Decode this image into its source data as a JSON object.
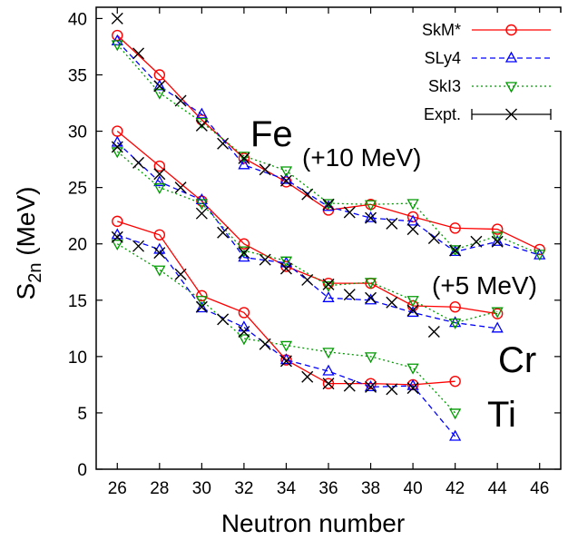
{
  "chart_data": {
    "type": "line",
    "xlabel": "Neutron number",
    "ylabel_main": "S",
    "ylabel_sub": "2n",
    "ylabel_unit": " (MeV)",
    "xlim": [
      25,
      47
    ],
    "ylim": [
      0,
      41
    ],
    "xticks": [
      26,
      28,
      30,
      32,
      34,
      36,
      38,
      40,
      42,
      44,
      46
    ],
    "yticks": [
      0,
      5,
      10,
      15,
      20,
      25,
      30,
      35,
      40
    ],
    "grid": false,
    "legend_position": "top-right",
    "legend": [
      {
        "key": "skm",
        "label": "SkM*"
      },
      {
        "key": "sly4",
        "label": "SLy4"
      },
      {
        "key": "ski3",
        "label": "SkI3"
      },
      {
        "key": "expt",
        "label": "Expt."
      }
    ],
    "styles": {
      "skm": {
        "color": "#ff0000",
        "marker": "circle",
        "dash": ""
      },
      "sly4": {
        "color": "#0000ff",
        "marker": "triangle-up",
        "dash": "6,4"
      },
      "ski3": {
        "color": "#009900",
        "marker": "triangle-down",
        "dash": "2,3"
      },
      "expt": {
        "color": "#000000",
        "marker": "cross",
        "dash": ""
      }
    },
    "annotations": {
      "fe": "Fe",
      "fe_shift": "(+10 MeV)",
      "cr_shift": "(+5 MeV)",
      "cr": "Cr",
      "ti": "Ti"
    },
    "series": [
      {
        "element": "Fe",
        "model": "skm",
        "x": [
          26,
          28,
          30,
          32,
          34,
          36,
          38,
          40,
          42,
          44,
          46
        ],
        "y": [
          38.5,
          35.0,
          31.0,
          27.6,
          25.5,
          23.0,
          23.5,
          22.4,
          21.4,
          21.3,
          19.5
        ]
      },
      {
        "element": "Fe",
        "model": "sly4",
        "x": [
          26,
          28,
          30,
          32,
          34,
          36,
          38,
          40,
          42,
          44,
          46
        ],
        "y": [
          38.0,
          34.0,
          31.5,
          27.0,
          25.7,
          23.3,
          22.3,
          22.0,
          19.3,
          20.2,
          19.0
        ]
      },
      {
        "element": "Fe",
        "model": "ski3",
        "x": [
          26,
          28,
          30,
          32,
          34,
          36,
          38,
          40,
          42,
          44,
          46
        ],
        "y": [
          37.7,
          33.4,
          30.8,
          27.8,
          26.5,
          23.6,
          23.5,
          23.6,
          19.5,
          20.7,
          19.1
        ]
      },
      {
        "element": "Fe",
        "model": "expt",
        "x": [
          26,
          27,
          28,
          29,
          30,
          31,
          32,
          33,
          34,
          35,
          36,
          37,
          38,
          39,
          40,
          41,
          42,
          43,
          44
        ],
        "y": [
          40.0,
          36.9,
          34.0,
          32.7,
          30.5,
          28.9,
          27.6,
          26.6,
          25.6,
          24.4,
          23.5,
          22.8,
          22.3,
          21.8,
          21.3,
          20.5,
          19.4,
          20.2,
          20.2
        ]
      },
      {
        "element": "Cr",
        "model": "skm",
        "x": [
          26,
          28,
          30,
          32,
          34,
          36,
          38,
          40,
          42,
          44
        ],
        "y": [
          30.0,
          26.9,
          23.8,
          20.0,
          18.0,
          16.5,
          16.5,
          14.5,
          14.4,
          13.8
        ]
      },
      {
        "element": "Cr",
        "model": "sly4",
        "x": [
          26,
          28,
          30,
          32,
          34,
          36,
          38,
          40,
          42,
          44
        ],
        "y": [
          29.0,
          25.5,
          23.9,
          18.8,
          18.3,
          15.2,
          15.0,
          13.9,
          13.0,
          12.5
        ]
      },
      {
        "element": "Cr",
        "model": "ski3",
        "x": [
          26,
          28,
          30,
          32,
          34,
          36,
          38,
          40,
          42,
          44
        ],
        "y": [
          28.2,
          25.0,
          23.6,
          19.4,
          18.5,
          16.3,
          16.6,
          15.0,
          13.0,
          14.0
        ]
      },
      {
        "element": "Cr",
        "model": "expt",
        "x": [
          26,
          27,
          28,
          29,
          30,
          31,
          32,
          33,
          34,
          35,
          36,
          37,
          38,
          39,
          40,
          41
        ],
        "y": [
          28.6,
          27.2,
          26.2,
          25.0,
          22.7,
          21.0,
          19.2,
          18.6,
          17.8,
          16.8,
          16.4,
          15.5,
          15.2,
          14.8,
          14.1,
          12.2
        ]
      },
      {
        "element": "Ti",
        "model": "skm",
        "x": [
          26,
          28,
          30,
          32,
          34,
          36,
          38,
          40,
          42
        ],
        "y": [
          22.0,
          20.8,
          15.4,
          13.9,
          9.7,
          7.6,
          7.6,
          7.5,
          7.8
        ]
      },
      {
        "element": "Ti",
        "model": "sly4",
        "x": [
          26,
          28,
          30,
          32,
          34,
          36,
          38,
          40,
          42
        ],
        "y": [
          20.8,
          19.5,
          14.3,
          12.6,
          9.7,
          8.7,
          7.3,
          7.4,
          2.9
        ]
      },
      {
        "element": "Ti",
        "model": "ski3",
        "x": [
          26,
          28,
          30,
          32,
          34,
          36,
          38,
          40,
          42
        ],
        "y": [
          20.0,
          17.7,
          15.0,
          11.6,
          11.0,
          10.4,
          10.0,
          9.0,
          5.0
        ]
      },
      {
        "element": "Ti",
        "model": "expt",
        "x": [
          26,
          27,
          28,
          29,
          30,
          31,
          32,
          33,
          34,
          35,
          36,
          37,
          38,
          39,
          40
        ],
        "y": [
          20.6,
          19.8,
          19.2,
          17.3,
          14.4,
          13.3,
          12.2,
          11.1,
          9.6,
          8.2,
          7.6,
          7.4,
          7.3,
          7.1,
          7.2
        ]
      }
    ]
  }
}
